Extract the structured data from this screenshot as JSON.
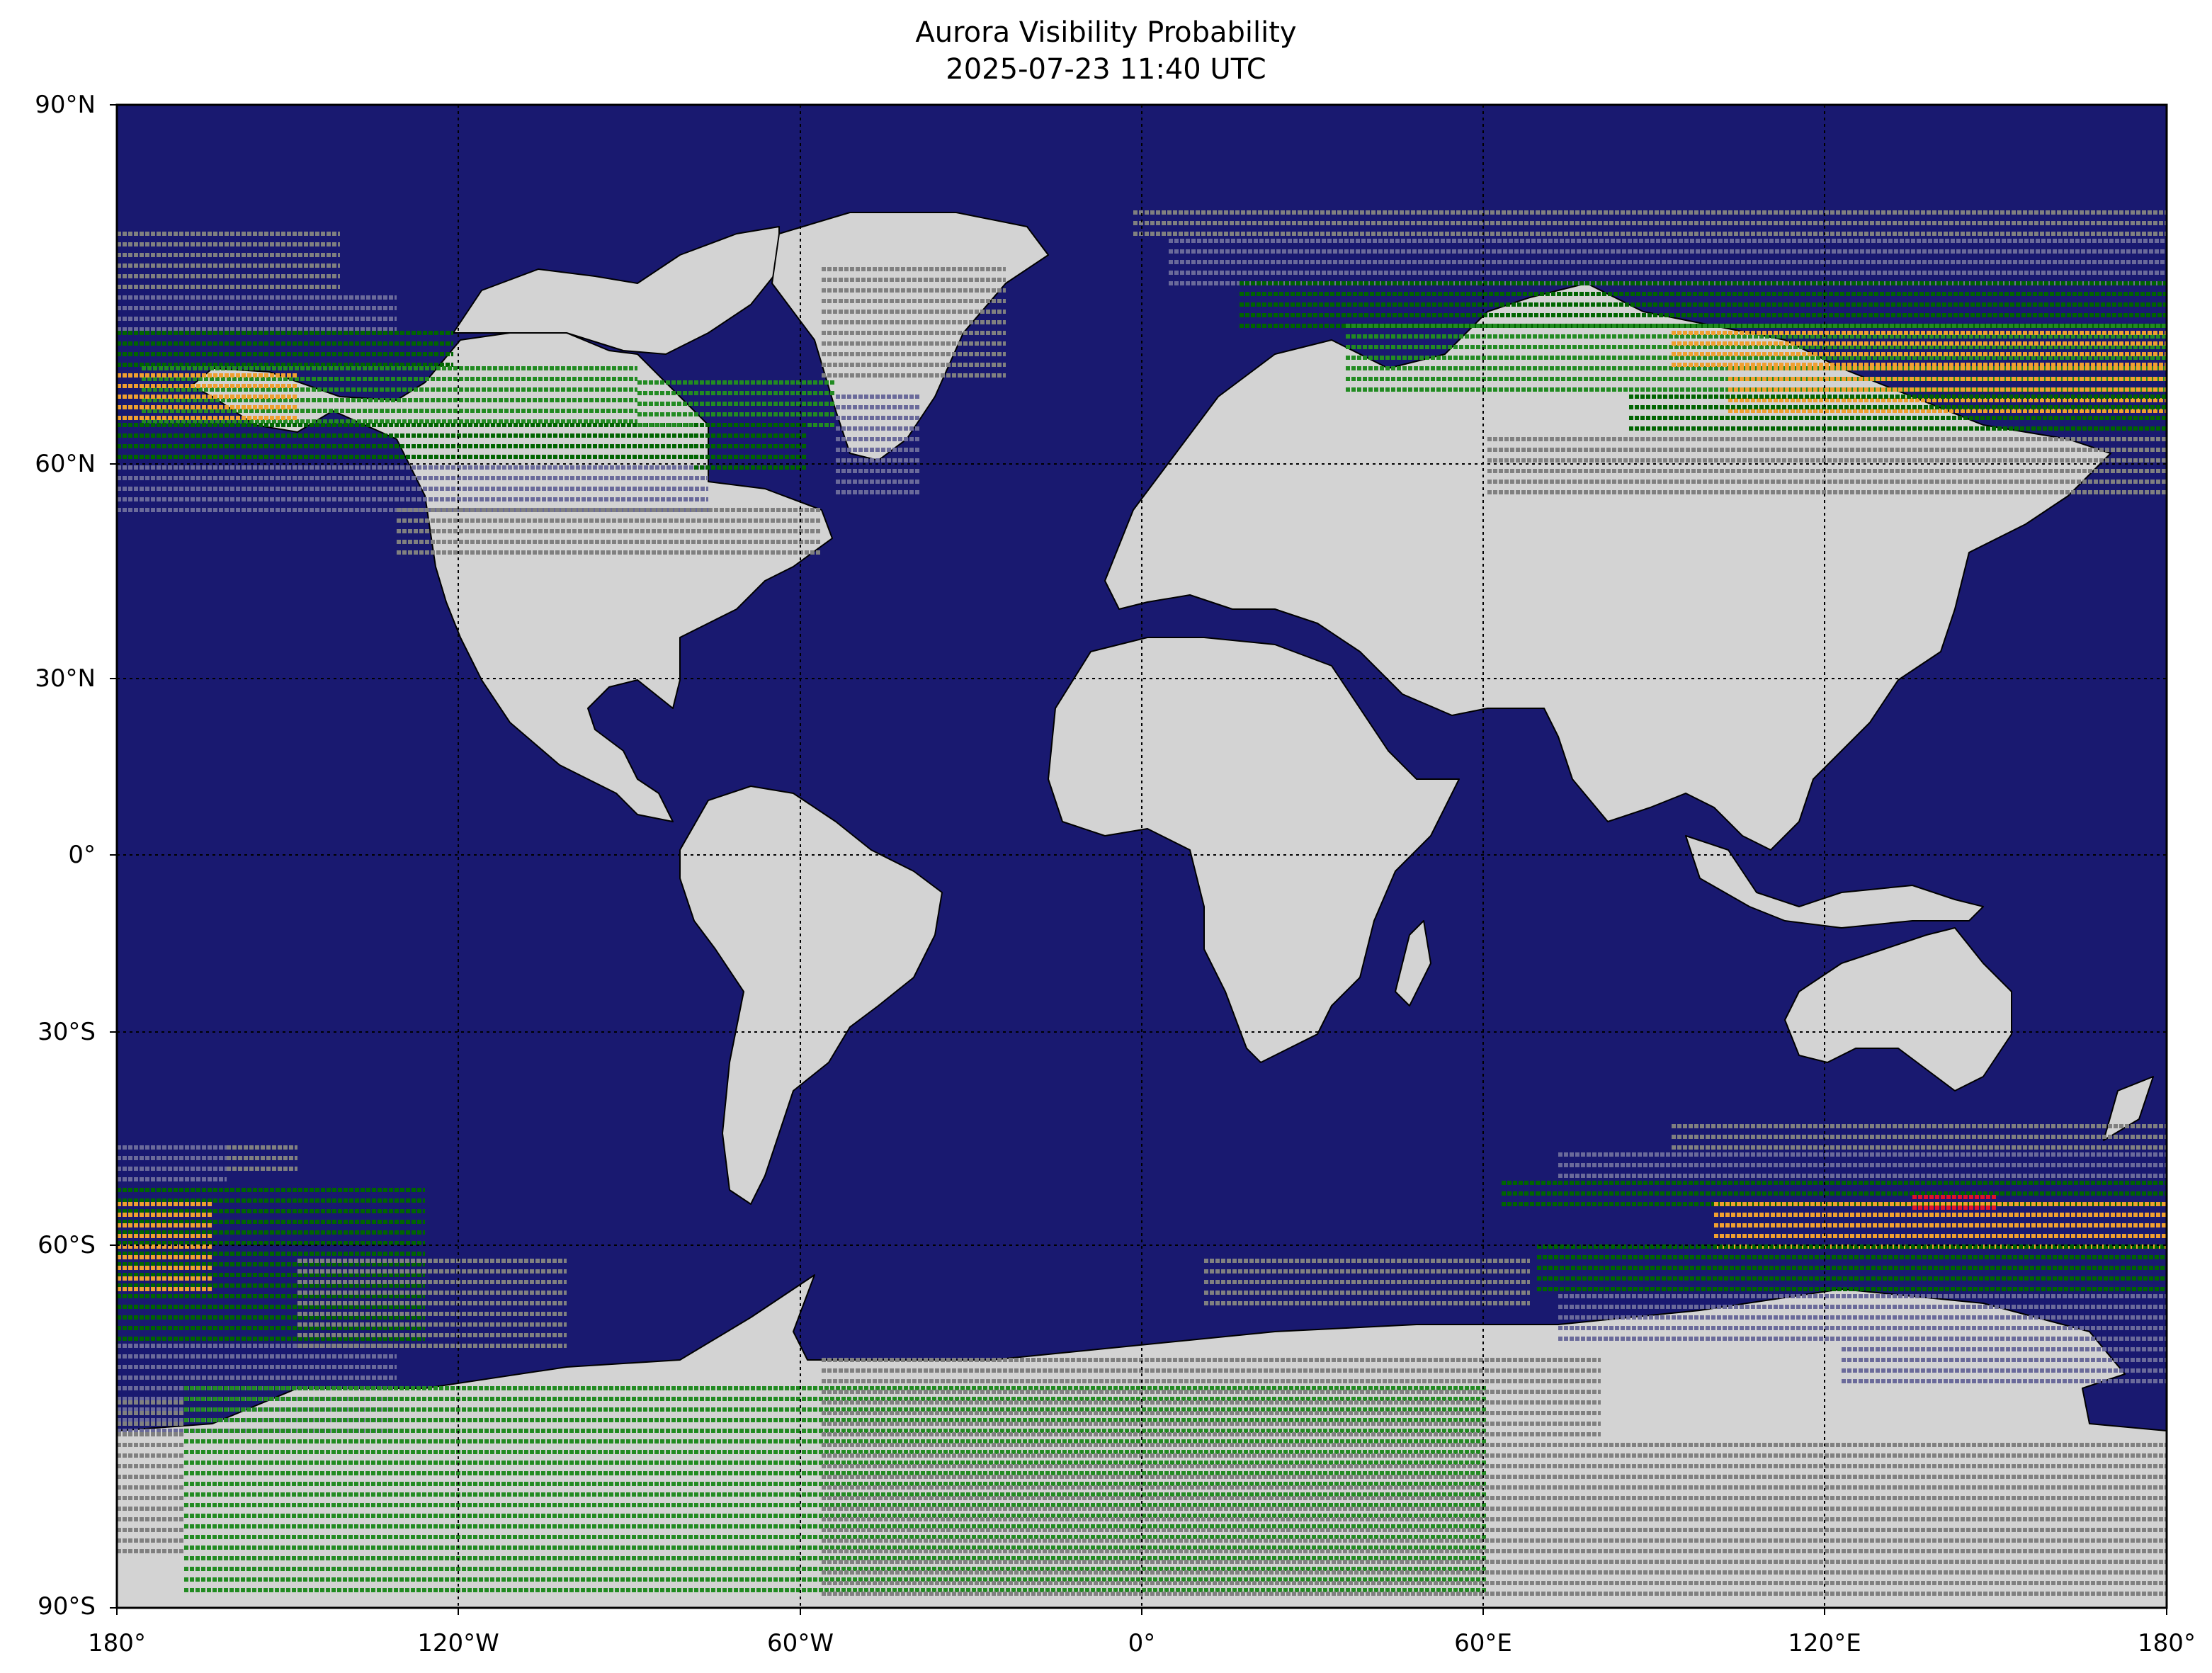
{
  "title": "Aurora Visibility Probability",
  "subtitle": "2025-07-23 11:40 UTC",
  "lat_labels": [
    "90°N",
    "60°N",
    "30°N",
    "0°",
    "30°S",
    "60°S",
    "90°S"
  ],
  "lon_labels": [
    "180°",
    "120°W",
    "60°W",
    "0°",
    "60°E",
    "120°E",
    "180°"
  ],
  "colors": {
    "ocean": "#191970",
    "land": "#d3d3d3",
    "coast": "#000000",
    "low_gray": "#808080",
    "slate": "#6a6a9a",
    "green_dark": "#006400",
    "green": "#228b22",
    "orange": "#f0a030",
    "red": "#e0102a"
  }
}
